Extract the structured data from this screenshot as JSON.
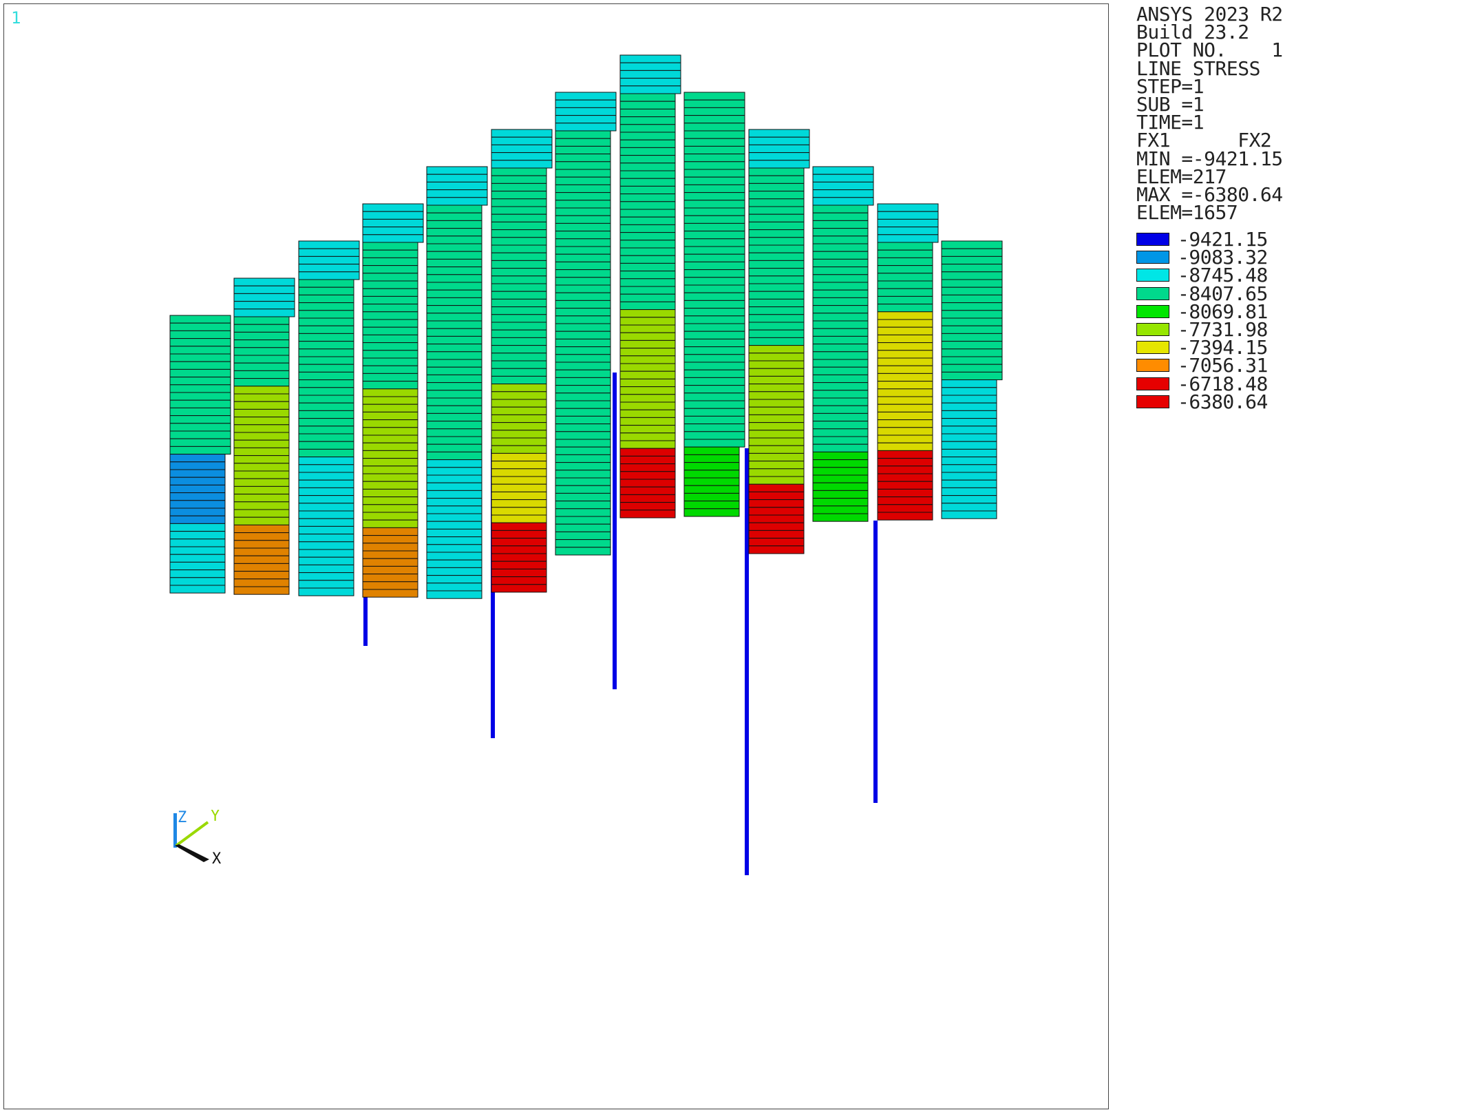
{
  "window": {
    "number": "1"
  },
  "info": {
    "lines": [
      "ANSYS 2023 R2",
      "Build 23.2",
      "PLOT NO.    1",
      "LINE STRESS",
      "STEP=1",
      "SUB =1",
      "TIME=1",
      "FX1      FX2",
      "MIN =-9421.15",
      "ELEM=217",
      "MAX =-6380.64",
      "ELEM=1657"
    ]
  },
  "legend": [
    {
      "value": "-9421.15",
      "color": "#0000e6"
    },
    {
      "value": "-9083.32",
      "color": "#0096e6"
    },
    {
      "value": "-8745.48",
      "color": "#00e6e6"
    },
    {
      "value": "-8407.65",
      "color": "#00d98c"
    },
    {
      "value": "-8069.81",
      "color": "#00e600"
    },
    {
      "value": "-7731.98",
      "color": "#96e600"
    },
    {
      "value": "-7394.15",
      "color": "#e6e600"
    },
    {
      "value": "-7056.31",
      "color": "#ff8c00"
    },
    {
      "value": "-6718.48",
      "color": "#e60000"
    },
    {
      "value": "-6380.64",
      "color": "#e60000"
    }
  ],
  "triad": {
    "x_label": "X",
    "y_label": "Y",
    "z_label": "Z"
  },
  "mesh_colors": {
    "blue": "#0000e6",
    "dodger": "#0b8ee0",
    "cyan": "#00d9d9",
    "green": "#00d98c",
    "lime": "#00d900",
    "yellowgreen": "#9ad900",
    "yellow": "#d9d900",
    "orange": "#e08200",
    "red": "#dd0000"
  },
  "mesh_columns": [
    {
      "segs": [
        [
          "green",
          18
        ],
        [
          "dodger",
          9
        ],
        [
          "cyan",
          9
        ]
      ]
    },
    {
      "segs": [
        [
          "cyan",
          5
        ],
        [
          "green",
          9
        ],
        [
          "yellowgreen",
          18
        ],
        [
          "orange",
          9
        ]
      ]
    },
    {
      "segs": [
        [
          "cyan",
          5
        ],
        [
          "green",
          23
        ],
        [
          "cyan",
          18
        ]
      ]
    },
    {
      "segs": [
        [
          "cyan",
          5
        ],
        [
          "green",
          19
        ],
        [
          "yellowgreen",
          18
        ],
        [
          "orange",
          9
        ]
      ]
    },
    {
      "segs": [
        [
          "cyan",
          5
        ],
        [
          "green",
          33
        ],
        [
          "cyan",
          18
        ]
      ]
    },
    {
      "segs": [
        [
          "cyan",
          5
        ],
        [
          "green",
          28
        ],
        [
          "yellowgreen",
          9
        ],
        [
          "yellow",
          9
        ],
        [
          "red",
          9
        ]
      ]
    },
    {
      "segs": [
        [
          "cyan",
          5
        ],
        [
          "green",
          55
        ]
      ]
    },
    {
      "segs": [
        [
          "cyan",
          5
        ],
        [
          "green",
          28
        ],
        [
          "yellowgreen",
          18
        ],
        [
          "red",
          9
        ]
      ]
    },
    {
      "segs": [
        [
          "green",
          46
        ],
        [
          "lime",
          9
        ]
      ]
    },
    {
      "segs": [
        [
          "cyan",
          5
        ],
        [
          "green",
          23
        ],
        [
          "yellowgreen",
          18
        ],
        [
          "red",
          9
        ]
      ]
    },
    {
      "segs": [
        [
          "cyan",
          5
        ],
        [
          "green",
          32
        ],
        [
          "lime",
          9
        ]
      ]
    },
    {
      "segs": [
        [
          "cyan",
          5
        ],
        [
          "green",
          9
        ],
        [
          "yellow",
          18
        ],
        [
          "red",
          9
        ]
      ]
    },
    {
      "segs": [
        [
          "green",
          18
        ],
        [
          "cyan",
          18
        ]
      ]
    }
  ]
}
